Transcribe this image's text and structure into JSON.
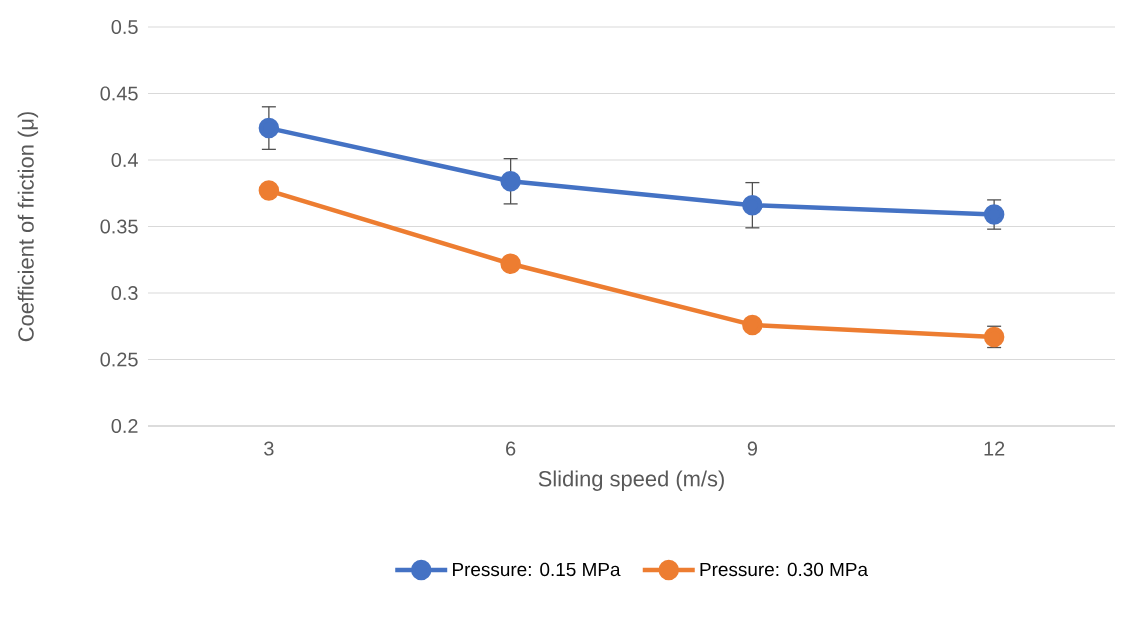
{
  "chart_data": {
    "type": "line",
    "xlabel": "Sliding speed (m/s)",
    "ylabel": "Coefficient of friction (μ)",
    "categories": [
      "3",
      "6",
      "9",
      "12"
    ],
    "ylim": [
      0.2,
      0.5
    ],
    "yticks": [
      0.2,
      0.25,
      0.3,
      0.35,
      0.4,
      0.45,
      0.5
    ],
    "grid": "y",
    "legend": "bottom",
    "marker": "circle",
    "line_style": "solid",
    "series": [
      {
        "name": "Pressure: 0.15 MPa",
        "color": "#4472c4",
        "values": [
          0.424,
          0.384,
          0.366,
          0.359
        ],
        "errors": [
          0.016,
          0.017,
          0.017,
          0.011
        ]
      },
      {
        "name": "Pressure: 0.30 MPa",
        "color": "#ed7d31",
        "values": [
          0.377,
          0.322,
          0.276,
          0.267
        ],
        "errors": [
          null,
          null,
          null,
          0.008
        ]
      }
    ]
  }
}
